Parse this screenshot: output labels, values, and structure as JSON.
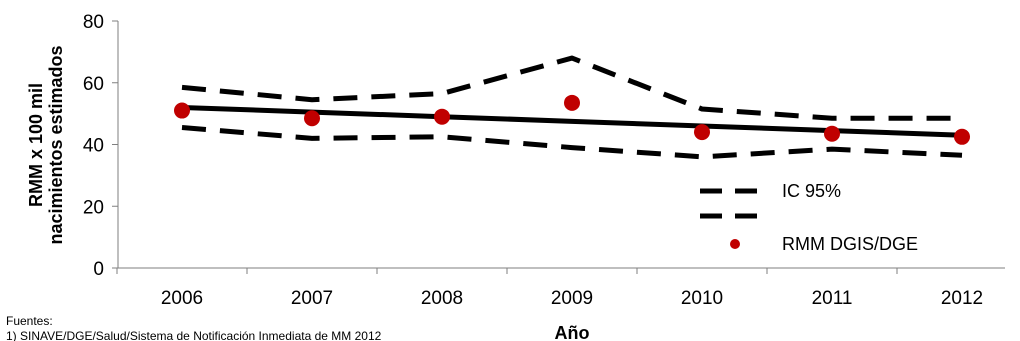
{
  "chart_data": {
    "type": "line",
    "x": [
      2006,
      2007,
      2008,
      2009,
      2010,
      2011,
      2012
    ],
    "categories": [
      "2006",
      "2007",
      "2008",
      "2009",
      "2010",
      "2011",
      "2012"
    ],
    "ylabel_lines": [
      "RMM x 100 mil",
      "nacimientos estimados"
    ],
    "xlabel": "Año",
    "ylim": [
      0,
      80
    ],
    "yticks": [
      0,
      20,
      40,
      60,
      80
    ],
    "legend_position": "bottom-right",
    "grid": false,
    "series": [
      {
        "name": "IC 95%",
        "style": "dashed",
        "role": "upper",
        "values": [
          58.5,
          54.5,
          56.5,
          68,
          51.5,
          48.5,
          48.5
        ]
      },
      {
        "name": "",
        "style": "dashed",
        "role": "lower",
        "values": [
          45.5,
          42,
          42.5,
          39,
          36,
          38.5,
          36.5
        ]
      },
      {
        "name": "",
        "style": "trend",
        "values": [
          52,
          50.5,
          49,
          47.5,
          46,
          44.5,
          43
        ]
      },
      {
        "name": "RMM DGIS/DGE",
        "style": "markers",
        "values": [
          51,
          48.5,
          49,
          53.5,
          44,
          43.5,
          42.5
        ]
      }
    ],
    "colors": {
      "marker": "#c00000",
      "line": "#000000"
    }
  },
  "sources": {
    "heading": "Fuentes:",
    "line1": "1) SINAVE/DGE/Salud/Sistema de Notificación Inmediata de MM 2012"
  }
}
